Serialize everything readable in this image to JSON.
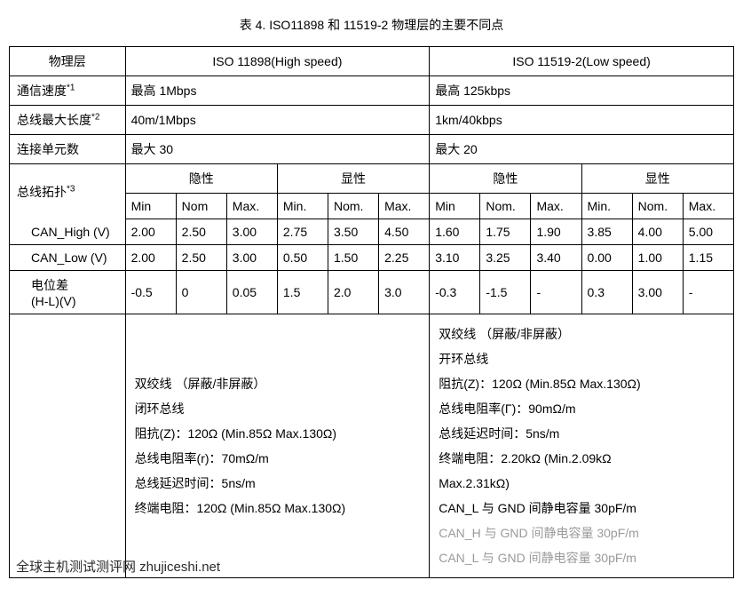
{
  "title": "表 4.   ISO11898 和 11519-2 物理层的主要不同点",
  "headers": {
    "phy": "物理层",
    "high": "ISO 11898(High speed)",
    "low": "ISO 11519-2(Low speed)"
  },
  "rows": {
    "speed": {
      "label": "通信速度",
      "sup": "*1",
      "high": "最高 1Mbps",
      "low": "最高 125kbps"
    },
    "length": {
      "label": "总线最大长度",
      "sup": "*2",
      "high": "40m/1Mbps",
      "low": "1km/40kbps"
    },
    "units": {
      "label": "连接单元数",
      "high": "最大 30",
      "low": "最大 20"
    },
    "topo": {
      "label": "总线拓扑",
      "sup": "*3"
    }
  },
  "sub": {
    "recessive": "隐性",
    "dominant": "显性",
    "min": "Min",
    "nom": "Nom",
    "max": "Max.",
    "min2": "Min.",
    "nom2": "Nom."
  },
  "signals": {
    "can_high": {
      "label": "CAN_High (V)",
      "hr": [
        "2.00",
        "2.50",
        "3.00"
      ],
      "hd": [
        "2.75",
        "3.50",
        "4.50"
      ],
      "lr": [
        "1.60",
        "1.75",
        "1.90"
      ],
      "ld": [
        "3.85",
        "4.00",
        "5.00"
      ]
    },
    "can_low": {
      "label": "CAN_Low (V)",
      "hr": [
        "2.00",
        "2.50",
        "3.00"
      ],
      "hd": [
        "0.50",
        "1.50",
        "2.25"
      ],
      "lr": [
        "3.10",
        "3.25",
        "3.40"
      ],
      "ld": [
        "0.00",
        "1.00",
        "1.15"
      ]
    },
    "diff": {
      "label1": "电位差",
      "label2": "(H-L)(V)",
      "hr": [
        "-0.5",
        "0",
        "0.05"
      ],
      "hd": [
        "1.5",
        "2.0",
        "3.0"
      ],
      "lr": [
        "-0.3",
        "-1.5",
        "-"
      ],
      "ld": [
        "0.3",
        "3.00",
        "-"
      ]
    }
  },
  "spec": {
    "high": {
      "l1": "双绞线  （屏蔽/非屏蔽）",
      "l2": "闭环总线",
      "l3": "阻抗(Z)：120Ω (Min.85Ω Max.130Ω)",
      "l4": "总线电阻率(r)：70mΩ/m",
      "l5": "总线延迟时间：5ns/m",
      "l6": "终端电阻：120Ω (Min.85Ω Max.130Ω)"
    },
    "low": {
      "l1": "双绞线  （屏蔽/非屏蔽）",
      "l2": "开环总线",
      "l3": "阻抗(Z)：120Ω (Min.85Ω Max.130Ω)",
      "l4": "总线电阻率(Γ)：90mΩ/m",
      "l5": "总线延迟时间：5ns/m",
      "l6": "终端电阻：2.20kΩ (Min.2.09kΩ",
      "l6b": "Max.2.31kΩ)",
      "l7": "CAN_L 与 GND 间静电容量   30pF/m",
      "l8": "CAN_H 与 GND 间静电容量   30pF/m",
      "l9": "CAN_L 与 GND 间静电容量   30pF/m"
    }
  },
  "watermark": "全球主机测试测评网 zhujiceshi.net"
}
